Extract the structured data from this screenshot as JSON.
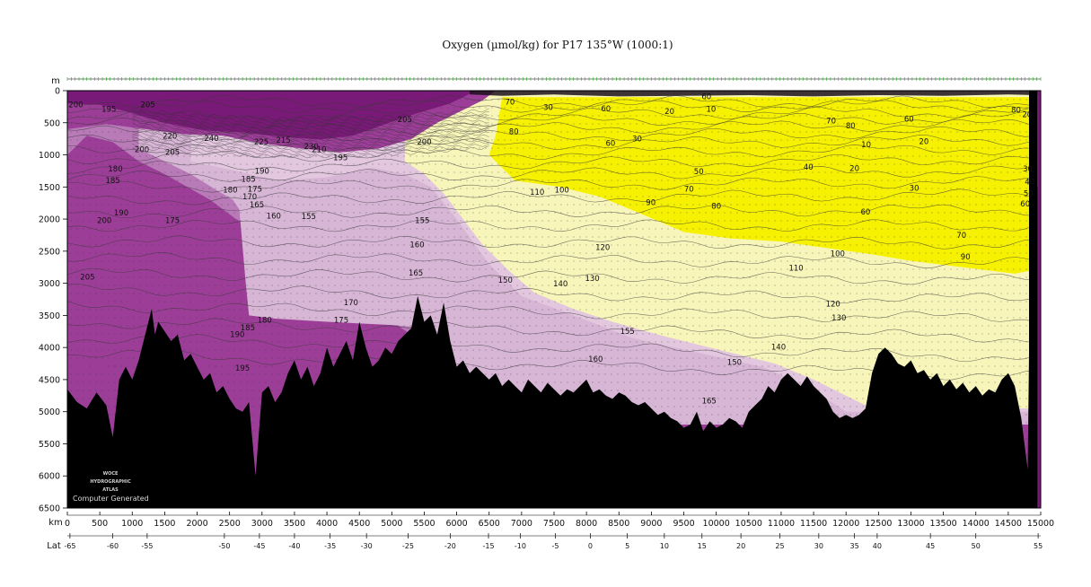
{
  "chart_data": {
    "type": "heatmap",
    "title": "Oxygen (µmol/kg) for P17 135°W (1000:1)",
    "xlabel": "km",
    "ylabel": "m",
    "second_axis_label": "Lat",
    "xlim": [
      0,
      15000
    ],
    "ylim": [
      6500,
      0
    ],
    "x_ticks": [
      0,
      500,
      1000,
      1500,
      2000,
      2500,
      3000,
      3500,
      4000,
      4500,
      5000,
      5500,
      6000,
      6500,
      7000,
      7500,
      8000,
      8500,
      9000,
      9500,
      10000,
      10500,
      11000,
      11500,
      12000,
      12500,
      13000,
      13500,
      14000,
      14500,
      15000
    ],
    "y_ticks": [
      0,
      500,
      1000,
      1500,
      2000,
      2500,
      3000,
      3500,
      4000,
      4500,
      5000,
      5500,
      6000,
      6500
    ],
    "lat_ticks": [
      {
        "label": "-65",
        "km": 40
      },
      {
        "label": "-60",
        "km": 700
      },
      {
        "label": "-55",
        "km": 1230
      },
      {
        "label": "-50",
        "km": 2420
      },
      {
        "label": "-45",
        "km": 2960
      },
      {
        "label": "-40",
        "km": 3500
      },
      {
        "label": "-35",
        "km": 4050
      },
      {
        "label": "-30",
        "km": 4610
      },
      {
        "label": "-25",
        "km": 5250
      },
      {
        "label": "-20",
        "km": 5900
      },
      {
        "label": "-15",
        "km": 6490
      },
      {
        "label": "-10",
        "km": 6980
      },
      {
        "label": "-5",
        "km": 7520
      },
      {
        "label": "0",
        "km": 8060
      },
      {
        "label": "5",
        "km": 8630
      },
      {
        "label": "10",
        "km": 9200
      },
      {
        "label": "15",
        "km": 9780
      },
      {
        "label": "20",
        "km": 10380
      },
      {
        "label": "25",
        "km": 10980
      },
      {
        "label": "30",
        "km": 11580
      },
      {
        "label": "35",
        "km": 12130
      },
      {
        "label": "40",
        "km": 12480
      },
      {
        "label": "45",
        "km": 13300
      },
      {
        "label": "50",
        "km": 14000
      },
      {
        "label": "55",
        "km": 14960
      }
    ],
    "color_bands": [
      {
        "range": "<= 60",
        "color": "#f6f100"
      },
      {
        "range": "60-150",
        "color": "#f7f5b9"
      },
      {
        "range": "150-175",
        "color": "#d7b5d5"
      },
      {
        "range": "175-200",
        "color": "#b97ab8"
      },
      {
        "range": "200-225",
        "color": "#9c3e98"
      },
      {
        "range": ">= 225",
        "color": "#7a1a78"
      }
    ],
    "contour_labels": [
      {
        "text": "200",
        "km": 130,
        "d": 260
      },
      {
        "text": "195",
        "km": 640,
        "d": 330
      },
      {
        "text": "205",
        "km": 1240,
        "d": 260
      },
      {
        "text": "200",
        "km": 1150,
        "d": 960
      },
      {
        "text": "205",
        "km": 1620,
        "d": 1000
      },
      {
        "text": "220",
        "km": 1580,
        "d": 750
      },
      {
        "text": "240",
        "km": 2220,
        "d": 780
      },
      {
        "text": "225",
        "km": 2990,
        "d": 840
      },
      {
        "text": "215",
        "km": 3330,
        "d": 810
      },
      {
        "text": "230",
        "km": 3760,
        "d": 910
      },
      {
        "text": "210",
        "km": 3880,
        "d": 960
      },
      {
        "text": "195",
        "km": 4210,
        "d": 1080
      },
      {
        "text": "205",
        "km": 5200,
        "d": 490
      },
      {
        "text": "200",
        "km": 5500,
        "d": 840
      },
      {
        "text": "180",
        "km": 740,
        "d": 1260
      },
      {
        "text": "185",
        "km": 700,
        "d": 1440
      },
      {
        "text": "190",
        "km": 3000,
        "d": 1290
      },
      {
        "text": "185",
        "km": 2790,
        "d": 1420
      },
      {
        "text": "180",
        "km": 2510,
        "d": 1590
      },
      {
        "text": "175",
        "km": 2890,
        "d": 1570
      },
      {
        "text": "170",
        "km": 2810,
        "d": 1690
      },
      {
        "text": "165",
        "km": 2920,
        "d": 1820
      },
      {
        "text": "160",
        "km": 3180,
        "d": 1990
      },
      {
        "text": "155",
        "km": 3720,
        "d": 2000
      },
      {
        "text": "155",
        "km": 5470,
        "d": 2060
      },
      {
        "text": "190",
        "km": 830,
        "d": 1940
      },
      {
        "text": "200",
        "km": 570,
        "d": 2060
      },
      {
        "text": "175",
        "km": 1620,
        "d": 2060
      },
      {
        "text": "160",
        "km": 5390,
        "d": 2440
      },
      {
        "text": "205",
        "km": 310,
        "d": 2940
      },
      {
        "text": "165",
        "km": 5370,
        "d": 2880
      },
      {
        "text": "170",
        "km": 4370,
        "d": 3340
      },
      {
        "text": "180",
        "km": 3040,
        "d": 3610
      },
      {
        "text": "185",
        "km": 2780,
        "d": 3730
      },
      {
        "text": "190",
        "km": 2620,
        "d": 3840
      },
      {
        "text": "175",
        "km": 4220,
        "d": 3610
      },
      {
        "text": "195",
        "km": 2700,
        "d": 4360
      },
      {
        "text": "150",
        "km": 6750,
        "d": 2990
      },
      {
        "text": "140",
        "km": 7600,
        "d": 3050
      },
      {
        "text": "130",
        "km": 8090,
        "d": 2960
      },
      {
        "text": "120",
        "km": 8250,
        "d": 2480
      },
      {
        "text": "110",
        "km": 7240,
        "d": 1620
      },
      {
        "text": "100",
        "km": 7620,
        "d": 1590
      },
      {
        "text": "90",
        "km": 8990,
        "d": 1780
      },
      {
        "text": "80",
        "km": 10000,
        "d": 1840
      },
      {
        "text": "70",
        "km": 9580,
        "d": 1570
      },
      {
        "text": "50",
        "km": 9730,
        "d": 1300
      },
      {
        "text": "40",
        "km": 11420,
        "d": 1230
      },
      {
        "text": "30",
        "km": 8780,
        "d": 790
      },
      {
        "text": "20",
        "km": 9280,
        "d": 360
      },
      {
        "text": "10",
        "km": 9920,
        "d": 330
      },
      {
        "text": "60",
        "km": 8300,
        "d": 320
      },
      {
        "text": "70",
        "km": 6820,
        "d": 220
      },
      {
        "text": "30",
        "km": 7410,
        "d": 300
      },
      {
        "text": "60",
        "km": 9850,
        "d": 130
      },
      {
        "text": "80",
        "km": 6880,
        "d": 680
      },
      {
        "text": "60",
        "km": 8370,
        "d": 860
      },
      {
        "text": "70",
        "km": 11770,
        "d": 510
      },
      {
        "text": "80",
        "km": 12070,
        "d": 590
      },
      {
        "text": "60",
        "km": 12970,
        "d": 480
      },
      {
        "text": "10",
        "km": 12310,
        "d": 880
      },
      {
        "text": "20",
        "km": 13200,
        "d": 830
      },
      {
        "text": "20",
        "km": 12130,
        "d": 1250
      },
      {
        "text": "30",
        "km": 13050,
        "d": 1560
      },
      {
        "text": "60",
        "km": 12300,
        "d": 1930
      },
      {
        "text": "100",
        "km": 11870,
        "d": 2580
      },
      {
        "text": "110",
        "km": 11230,
        "d": 2800
      },
      {
        "text": "90",
        "km": 13840,
        "d": 2630
      },
      {
        "text": "70",
        "km": 13780,
        "d": 2290
      },
      {
        "text": "120",
        "km": 11800,
        "d": 3360
      },
      {
        "text": "130",
        "km": 11890,
        "d": 3580
      },
      {
        "text": "140",
        "km": 10960,
        "d": 4030
      },
      {
        "text": "150",
        "km": 10280,
        "d": 4270
      },
      {
        "text": "155",
        "km": 8630,
        "d": 3790
      },
      {
        "text": "160",
        "km": 8140,
        "d": 4220
      },
      {
        "text": "165",
        "km": 9890,
        "d": 4870
      },
      {
        "text": "20",
        "km": 14790,
        "d": 410
      },
      {
        "text": "30",
        "km": 14800,
        "d": 1260
      },
      {
        "text": "40",
        "km": 14830,
        "d": 1460
      },
      {
        "text": "50",
        "km": 14810,
        "d": 1640
      },
      {
        "text": "60",
        "km": 14760,
        "d": 1800
      },
      {
        "text": "80",
        "km": 14620,
        "d": 340
      }
    ],
    "stamp_lines": [
      "WOCE",
      "HYDROGRAPHIC",
      "ATLAS"
    ],
    "stamp_note": "Computer Generated"
  }
}
